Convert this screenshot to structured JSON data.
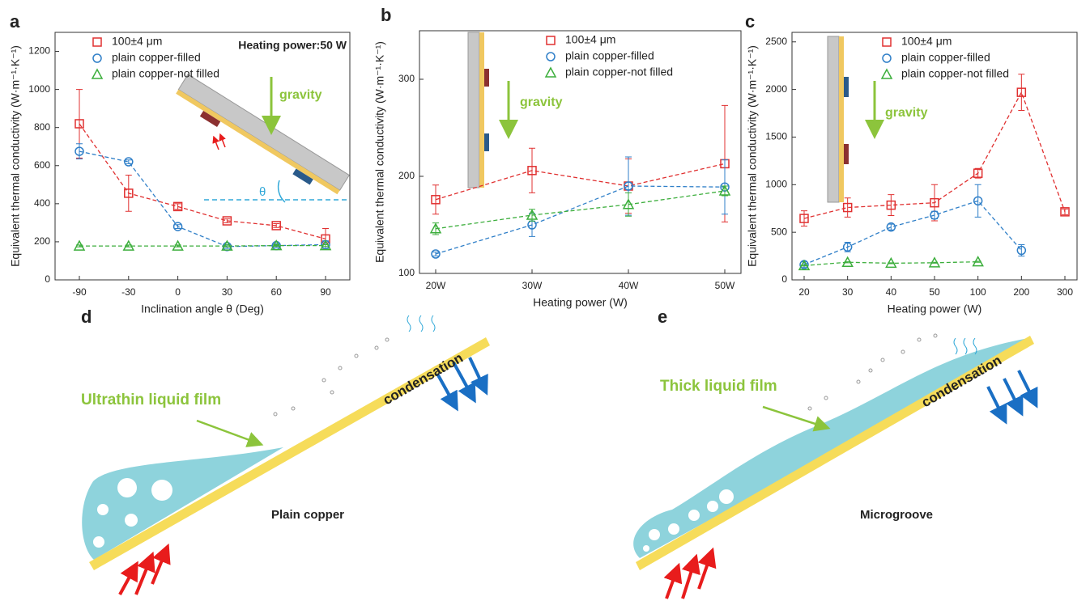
{
  "chart_data": [
    {
      "type": "line",
      "panel": "a",
      "x_label": "Inclination angle θ (Deg)",
      "y_label": "Equivalent  thermal conductivity (W·m⁻¹·K⁻¹)",
      "annotations": [
        "Heating power:50 W",
        "gravity",
        "θ"
      ],
      "categories": [
        "-90",
        "-30",
        "0",
        "30",
        "60",
        "90"
      ],
      "ylim": [
        0,
        1300
      ],
      "yticks": [
        0,
        200,
        400,
        600,
        800,
        1000,
        1200
      ],
      "legend": "upper left",
      "series": [
        {
          "name": "100±4 μm",
          "color": "#e03030",
          "marker": "square",
          "values": [
            820,
            455,
            385,
            310,
            285,
            215
          ],
          "errors": [
            180,
            95,
            15,
            10,
            10,
            55
          ]
        },
        {
          "name": "plain copper-filled",
          "color": "#2f7fc8",
          "marker": "circle",
          "values": [
            675,
            620,
            280,
            175,
            180,
            185
          ],
          "errors": [
            40,
            10,
            10,
            10,
            10,
            20
          ]
        },
        {
          "name": "plain copper-not filled",
          "color": "#3cae3c",
          "marker": "triangle",
          "values": [
            178,
            178,
            178,
            178,
            180,
            180
          ],
          "errors": [
            5,
            5,
            5,
            5,
            5,
            5
          ]
        }
      ]
    },
    {
      "type": "line",
      "panel": "b",
      "x_label": "Heating power (W)",
      "y_label": "Equivalent  thermal conductivity (W·m⁻¹·K⁻¹)",
      "annotations": [
        "gravity"
      ],
      "categories": [
        "20W",
        "30W",
        "40W",
        "50W"
      ],
      "ylim": [
        100,
        350
      ],
      "yticks": [
        100,
        200,
        300
      ],
      "legend": "upper right",
      "series": [
        {
          "name": "100±4 μm",
          "color": "#e03030",
          "marker": "square",
          "values": [
            176,
            206,
            190,
            213
          ],
          "errors": [
            15,
            23,
            28,
            60
          ]
        },
        {
          "name": "plain copper-filled",
          "color": "#2f7fc8",
          "marker": "circle",
          "values": [
            120,
            150,
            190,
            189
          ],
          "errors": [
            2,
            12,
            30,
            28
          ]
        },
        {
          "name": "plain copper-not filled",
          "color": "#3cae3c",
          "marker": "triangle",
          "values": [
            146,
            160,
            171,
            185
          ],
          "errors": [
            6,
            6,
            12,
            5
          ]
        }
      ]
    },
    {
      "type": "line",
      "panel": "c",
      "x_label": "Heating power (W)",
      "y_label": "Equivalent  thermal conductivity (W·m⁻¹·K⁻¹)",
      "annotations": [
        "gravity"
      ],
      "categories": [
        "20",
        "30",
        "40",
        "50",
        "100",
        "200",
        "300"
      ],
      "ylim": [
        0,
        2600
      ],
      "yticks": [
        0,
        500,
        1000,
        1500,
        2000,
        2500
      ],
      "legend": "upper right",
      "series": [
        {
          "name": "100±4 μm",
          "color": "#e03030",
          "marker": "square",
          "values": [
            645,
            760,
            785,
            810,
            1120,
            1970,
            715
          ],
          "errors": [
            80,
            100,
            110,
            190,
            50,
            190,
            30
          ]
        },
        {
          "name": "plain copper-filled",
          "color": "#2f7fc8",
          "marker": "circle",
          "values": [
            160,
            345,
            555,
            680,
            830,
            310,
            null
          ],
          "errors": [
            30,
            50,
            30,
            40,
            170,
            60,
            null
          ]
        },
        {
          "name": "plain copper-not filled",
          "color": "#3cae3c",
          "marker": "triangle",
          "values": [
            150,
            185,
            175,
            180,
            190,
            null,
            null
          ],
          "errors": [
            5,
            5,
            5,
            5,
            5,
            null,
            null
          ]
        }
      ]
    }
  ],
  "diagrams": [
    {
      "panel": "d",
      "film": "Ultrathin liquid film",
      "zone": "condensation",
      "surface": "Plain copper"
    },
    {
      "panel": "e",
      "film": "Thick liquid film",
      "zone": "condensation",
      "surface": "Microgroove"
    }
  ]
}
